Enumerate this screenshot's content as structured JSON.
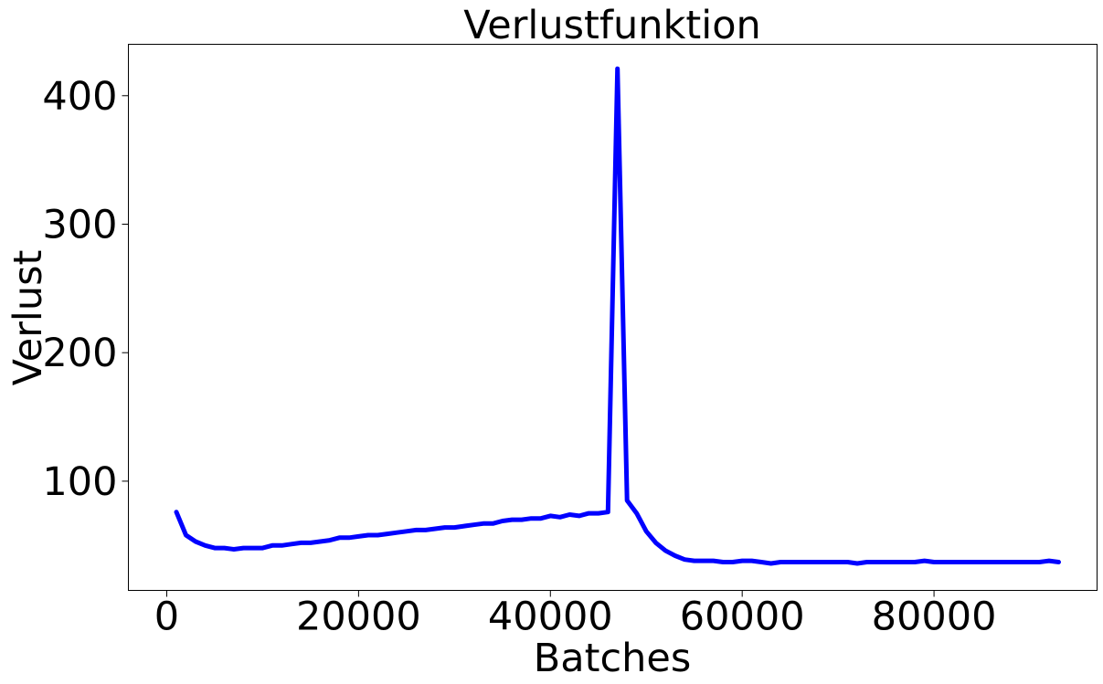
{
  "chart_data": {
    "type": "line",
    "title": "Verlustfunktion",
    "xlabel": "Batches",
    "ylabel": "Verlust",
    "xlim": [
      -4000,
      97000
    ],
    "ylim": [
      15,
      440
    ],
    "x_ticks": [
      0,
      20000,
      40000,
      60000,
      80000
    ],
    "x_tick_labels": [
      "0",
      "20000",
      "40000",
      "60000",
      "80000"
    ],
    "y_ticks": [
      100,
      200,
      300,
      400
    ],
    "y_tick_labels": [
      "100",
      "200",
      "300",
      "400"
    ],
    "grid": false,
    "legend": "none",
    "series": [
      {
        "color": "#0000ff",
        "x": [
          1000,
          2000,
          3000,
          4000,
          5000,
          6000,
          7000,
          8000,
          9000,
          10000,
          11000,
          12000,
          13000,
          14000,
          15000,
          16000,
          17000,
          18000,
          19000,
          20000,
          21000,
          22000,
          23000,
          24000,
          25000,
          26000,
          27000,
          28000,
          29000,
          30000,
          31000,
          32000,
          33000,
          34000,
          35000,
          36000,
          37000,
          38000,
          39000,
          40000,
          41000,
          42000,
          43000,
          44000,
          45000,
          46000,
          47000,
          48000,
          49000,
          50000,
          51000,
          52000,
          53000,
          54000,
          55000,
          56000,
          57000,
          58000,
          59000,
          60000,
          61000,
          62000,
          63000,
          64000,
          65000,
          66000,
          67000,
          68000,
          69000,
          70000,
          71000,
          72000,
          73000,
          74000,
          75000,
          76000,
          77000,
          78000,
          79000,
          80000,
          81000,
          82000,
          83000,
          84000,
          85000,
          86000,
          87000,
          88000,
          89000,
          90000,
          91000,
          92000,
          93000
        ],
        "y": [
          76,
          58,
          53,
          50,
          48,
          48,
          47,
          48,
          48,
          48,
          50,
          50,
          51,
          52,
          52,
          53,
          54,
          56,
          56,
          57,
          58,
          58,
          59,
          60,
          61,
          62,
          62,
          63,
          64,
          64,
          65,
          66,
          67,
          67,
          69,
          70,
          70,
          71,
          71,
          73,
          72,
          74,
          73,
          75,
          75,
          76,
          421,
          85,
          75,
          61,
          52,
          46,
          42,
          39,
          38,
          38,
          38,
          37,
          37,
          38,
          38,
          37,
          36,
          37,
          37,
          37,
          37,
          37,
          37,
          37,
          37,
          36,
          37,
          37,
          37,
          37,
          37,
          37,
          38,
          37,
          37,
          37,
          37,
          37,
          37,
          37,
          37,
          37,
          37,
          37,
          37,
          38,
          37
        ]
      }
    ]
  }
}
